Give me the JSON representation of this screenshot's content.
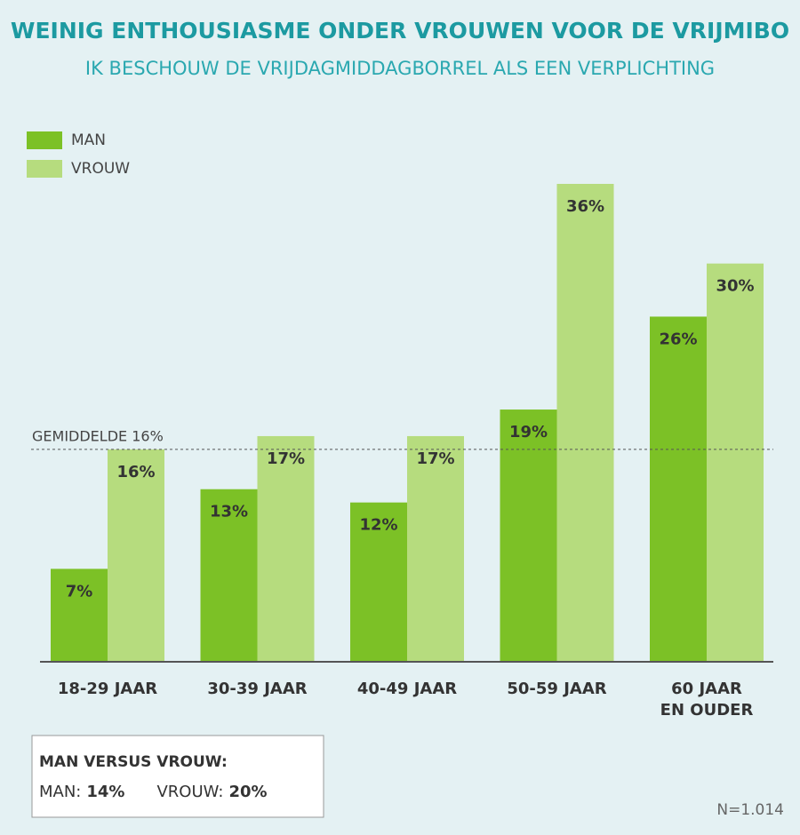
{
  "chart_data": {
    "type": "bar",
    "title": "WEINIG ENTHOUSIASME ONDER VROUWEN VOOR DE VRIJMIBO",
    "subtitle": "IK BESCHOUW DE VRIJDAGMIDDAGBORREL ALS EEN VERPLICHTING",
    "categories": [
      "18-29 JAAR",
      "30-39 JAAR",
      "40-49 JAAR",
      "50-59 JAAR",
      "60 JAAR\nEN OUDER"
    ],
    "series": [
      {
        "name": "MAN",
        "color": "#7cc126",
        "values": [
          7,
          13,
          12,
          19,
          26
        ],
        "value_labels": [
          "7%",
          "13%",
          "12%",
          "19%",
          "26%"
        ]
      },
      {
        "name": "VROUW",
        "color": "#b6dc7e",
        "values": [
          16,
          17,
          17,
          36,
          30
        ],
        "value_labels": [
          "16%",
          "17%",
          "17%",
          "36%",
          "30%"
        ]
      }
    ],
    "average": {
      "value": 16,
      "label": "GEMIDDELDE 16%"
    },
    "summary": {
      "title": "MAN VERSUS VROUW:",
      "items": [
        {
          "name": "MAN:",
          "value": 14,
          "value_label": "14%"
        },
        {
          "name": "VROUW:",
          "value": 20,
          "value_label": "20%"
        }
      ]
    },
    "note": "N=1.014"
  }
}
